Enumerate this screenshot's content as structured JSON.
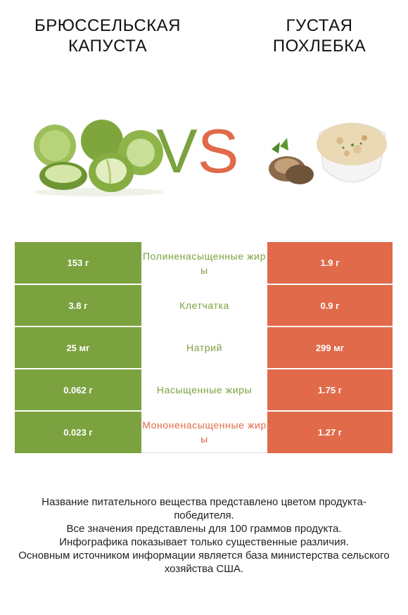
{
  "header": {
    "left_title": "БРЮССЕЛЬСКАЯ\nКАПУСТА",
    "right_title": "ГУСТАЯ\nПОХЛЕБКА",
    "vs_v": "V",
    "vs_s": "S"
  },
  "colors": {
    "left": "#7ba23f",
    "right": "#e06a4a"
  },
  "rows": [
    {
      "left": "153 г",
      "name": "Полиненасыщенные жиры",
      "right": "1.9 г",
      "winner": "left"
    },
    {
      "left": "3.8 г",
      "name": "Клетчатка",
      "right": "0.9 г",
      "winner": "left"
    },
    {
      "left": "25 мг",
      "name": "Натрий",
      "right": "299 мг",
      "winner": "left"
    },
    {
      "left": "0.062 г",
      "name": "Насыщенные жиры",
      "right": "1.75 г",
      "winner": "left"
    },
    {
      "left": "0.023 г",
      "name": "Мононенасыщенные жиры",
      "right": "1.27 г",
      "winner": "right"
    }
  ],
  "footer": {
    "line1": "Название питательного вещества представлено цветом продукта-победителя.",
    "line2": "Все значения представлены для 100 граммов продукта.",
    "line3": "Инфографика показывает только существенные различия.",
    "line4": "Основным источником информации является база министерства сельского хозяйства США."
  }
}
